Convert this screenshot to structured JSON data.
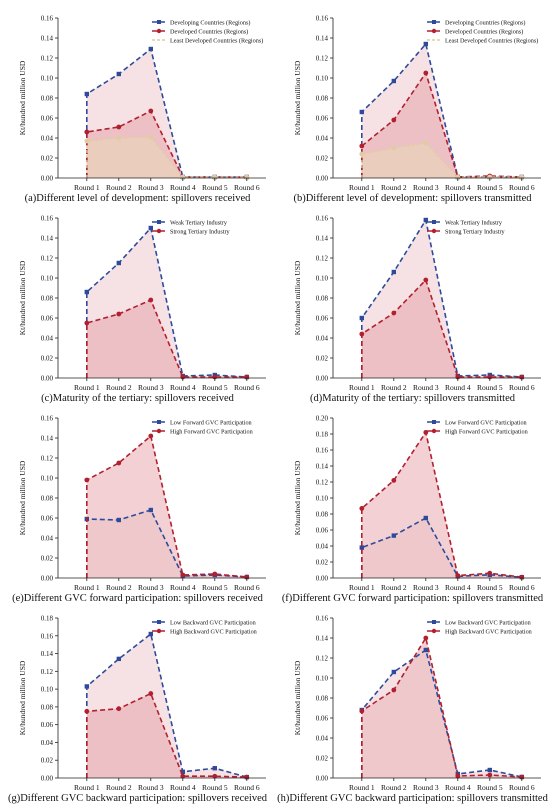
{
  "chart_data": [
    {
      "type": "area",
      "title": "(a)Different level of development: spillovers received",
      "xlabel": "",
      "ylabel": "Kt/hundred million USD",
      "categories": [
        "Round 1",
        "Round 2",
        "Round 3",
        "Round 4",
        "Round 5",
        "Round 6"
      ],
      "ylim": [
        0,
        0.16
      ],
      "yticks": [
        "0.00",
        "0.02",
        "0.04",
        "0.06",
        "0.08",
        "0.10",
        "0.12",
        "0.14",
        "0.16"
      ],
      "legend_position": "top-right",
      "series": [
        {
          "name": "Developing Countries (Regions)",
          "color": "#2e4b9b",
          "values": [
            0.084,
            0.104,
            0.129,
            0.001,
            0.001,
            0.001
          ]
        },
        {
          "name": "Developed Countries (Regions)",
          "color": "#b22030",
          "values": [
            0.046,
            0.051,
            0.067,
            0.001,
            0.001,
            0.001
          ]
        },
        {
          "name": "Least Developed Countries (Regions)",
          "color": "#e0cca0",
          "values": [
            0.037,
            0.04,
            0.041,
            0.001,
            0.001,
            0.001
          ]
        }
      ]
    },
    {
      "type": "area",
      "title": "(b)Different level of development: spillovers transmitted",
      "xlabel": "",
      "ylabel": "Kt/hundred million USD",
      "categories": [
        "Round 1",
        "Round 2",
        "Round 3",
        "Round 4",
        "Round 5",
        "Round 6"
      ],
      "ylim": [
        0,
        0.16
      ],
      "yticks": [
        "0.00",
        "0.02",
        "0.04",
        "0.06",
        "0.08",
        "0.10",
        "0.12",
        "0.14",
        "0.16"
      ],
      "legend_position": "top-right",
      "series": [
        {
          "name": "Developing Countries (Regions)",
          "color": "#2e4b9b",
          "values": [
            0.066,
            0.097,
            0.134,
            0.001,
            0.001,
            0.001
          ]
        },
        {
          "name": "Developed Countries (Regions)",
          "color": "#b22030",
          "values": [
            0.032,
            0.058,
            0.105,
            0.001,
            0.002,
            0.001
          ]
        },
        {
          "name": "Least Developed Countries (Regions)",
          "color": "#e0cca0",
          "values": [
            0.024,
            0.03,
            0.035,
            0.001,
            0.001,
            0.001
          ]
        }
      ]
    },
    {
      "type": "area",
      "title": "(c)Maturity of the tertiary: spillovers received",
      "xlabel": "",
      "ylabel": "Kt/hundred million USD",
      "categories": [
        "Round 1",
        "Round 2",
        "Round 3",
        "Round 4",
        "Round 5",
        "Round 6"
      ],
      "ylim": [
        0,
        0.16
      ],
      "yticks": [
        "0.00",
        "0.02",
        "0.04",
        "0.06",
        "0.08",
        "0.10",
        "0.12",
        "0.14",
        "0.16"
      ],
      "legend_position": "top-right",
      "series": [
        {
          "name": "Weak Tertiary Industry",
          "color": "#2e4b9b",
          "values": [
            0.086,
            0.115,
            0.15,
            0.002,
            0.003,
            0.001
          ]
        },
        {
          "name": "Strong Tertiary Industry",
          "color": "#b22030",
          "values": [
            0.055,
            0.064,
            0.078,
            0.001,
            0.001,
            0.001
          ]
        }
      ]
    },
    {
      "type": "area",
      "title": "(d)Maturity of the tertiary: spillovers transmitted",
      "xlabel": "",
      "ylabel": "Kt/hundred million USD",
      "categories": [
        "Round 1",
        "Round 2",
        "Round 3",
        "Round 4",
        "Round 5",
        "Round 6"
      ],
      "ylim": [
        0,
        0.16
      ],
      "yticks": [
        "0.00",
        "0.02",
        "0.04",
        "0.06",
        "0.08",
        "0.10",
        "0.12",
        "0.14",
        "0.16"
      ],
      "legend_position": "top-right",
      "series": [
        {
          "name": "Weak Tertiary Industry",
          "color": "#2e4b9b",
          "values": [
            0.06,
            0.106,
            0.158,
            0.002,
            0.003,
            0.001
          ]
        },
        {
          "name": "Strong Tertiary Industry",
          "color": "#b22030",
          "values": [
            0.044,
            0.065,
            0.098,
            0.001,
            0.001,
            0.001
          ]
        }
      ]
    },
    {
      "type": "area",
      "title": "(e)Different GVC forward participation: spillovers received",
      "xlabel": "",
      "ylabel": "Kt/hundred million USD",
      "categories": [
        "Round 1",
        "Round 2",
        "Round 3",
        "Round 4",
        "Round 5",
        "Round 6"
      ],
      "ylim": [
        0,
        0.16
      ],
      "yticks": [
        "0.00",
        "0.02",
        "0.04",
        "0.06",
        "0.08",
        "0.10",
        "0.12",
        "0.14",
        "0.16"
      ],
      "legend_position": "top-right",
      "series": [
        {
          "name": "Low Forward GVC Participation",
          "color": "#2e4b9b",
          "values": [
            0.059,
            0.058,
            0.068,
            0.002,
            0.003,
            0.001
          ]
        },
        {
          "name": "High Forward GVC Participation",
          "color": "#b22030",
          "values": [
            0.098,
            0.115,
            0.142,
            0.003,
            0.004,
            0.001
          ]
        }
      ]
    },
    {
      "type": "area",
      "title": "(f)Different GVC forward participation: spillovers transmitted",
      "xlabel": "",
      "ylabel": "Kt/hundred million USD",
      "categories": [
        "Round 1",
        "Round 2",
        "Round 3",
        "Round 4",
        "Round 5",
        "Round 6"
      ],
      "ylim": [
        0,
        0.2
      ],
      "yticks": [
        "0.00",
        "0.02",
        "0.04",
        "0.06",
        "0.08",
        "0.10",
        "0.12",
        "0.14",
        "0.16",
        "0.18",
        "0.20"
      ],
      "legend_position": "top-right",
      "series": [
        {
          "name": "Low Forward GVC Participation",
          "color": "#2e4b9b",
          "values": [
            0.038,
            0.053,
            0.075,
            0.002,
            0.004,
            0.001
          ]
        },
        {
          "name": "High Forward GVC Participation",
          "color": "#b22030",
          "values": [
            0.087,
            0.122,
            0.182,
            0.003,
            0.006,
            0.001
          ]
        }
      ]
    },
    {
      "type": "area",
      "title": "(g)Different GVC backward participation: spillovers received",
      "xlabel": "",
      "ylabel": "Kt/hundred million USD",
      "categories": [
        "Round 1",
        "Round 2",
        "Round 3",
        "Round 4",
        "Round 5",
        "Round 6"
      ],
      "ylim": [
        0,
        0.18
      ],
      "yticks": [
        "0.00",
        "0.02",
        "0.04",
        "0.06",
        "0.08",
        "0.10",
        "0.12",
        "0.14",
        "0.16",
        "0.18"
      ],
      "legend_position": "top-right",
      "series": [
        {
          "name": "Low Backward GVC Participation",
          "color": "#2e4b9b",
          "values": [
            0.103,
            0.134,
            0.162,
            0.007,
            0.011,
            0.001
          ]
        },
        {
          "name": "High Backward GVC Participation",
          "color": "#b22030",
          "values": [
            0.075,
            0.078,
            0.095,
            0.002,
            0.002,
            0.001
          ]
        }
      ]
    },
    {
      "type": "area",
      "title": "(h)Different GVC backward participation: spillovers transmitted",
      "xlabel": "",
      "ylabel": "Kt/hundred million USD",
      "categories": [
        "Round 1",
        "Round 2",
        "Round 3",
        "Round 4",
        "Round 5",
        "Round 6"
      ],
      "ylim": [
        0,
        0.16
      ],
      "yticks": [
        "0.00",
        "0.02",
        "0.04",
        "0.06",
        "0.08",
        "0.10",
        "0.12",
        "0.14",
        "0.16"
      ],
      "legend_position": "top-right",
      "series": [
        {
          "name": "Low Backward GVC Participation",
          "color": "#2e4b9b",
          "values": [
            0.068,
            0.106,
            0.128,
            0.004,
            0.008,
            0.001
          ]
        },
        {
          "name": "High Backward GVC Participation",
          "color": "#b22030",
          "values": [
            0.067,
            0.088,
            0.14,
            0.002,
            0.003,
            0.001
          ]
        }
      ]
    }
  ]
}
